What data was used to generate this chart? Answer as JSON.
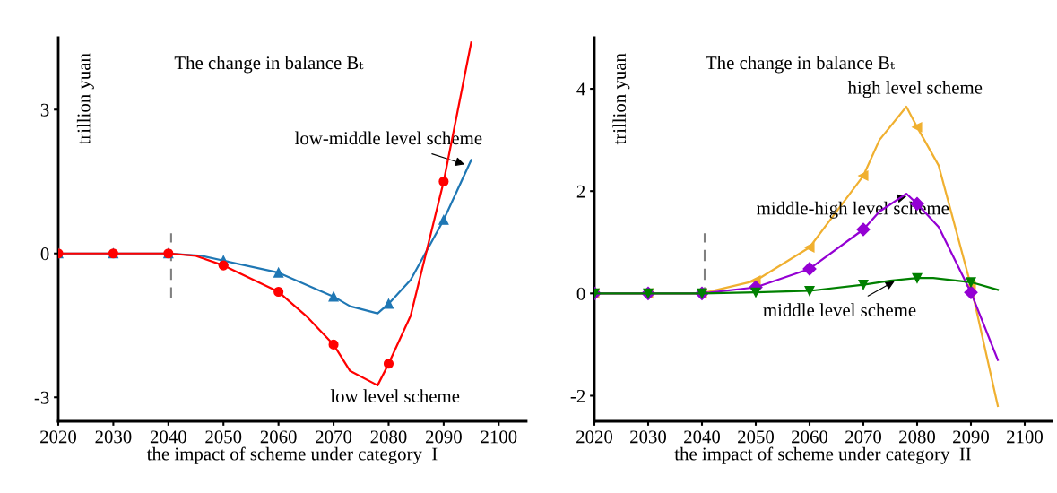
{
  "chart_data": [
    {
      "type": "line",
      "title": "The change in balance Bₜ",
      "xlabel": "the impact of scheme under category  I",
      "ylabel": "trillion yuan",
      "xlim": [
        2020,
        2105
      ],
      "xticks": [
        2020,
        2030,
        2040,
        2050,
        2060,
        2070,
        2080,
        2090,
        2100
      ],
      "ylim": [
        -3.5,
        4.5
      ],
      "yticks": [
        -3,
        0,
        3
      ],
      "grid": false,
      "legend": false,
      "ref_lines": [
        {
          "axis": "x",
          "value": 2040.5,
          "color": "#808080",
          "line_style": "dashed"
        }
      ],
      "series": [
        {
          "color": "#ff0000",
          "marker": "circle",
          "x": [
            2020,
            2030,
            2040,
            2045,
            2050,
            2060,
            2065,
            2070,
            2073,
            2078,
            2080,
            2084,
            2090,
            2095
          ],
          "values": [
            0,
            0,
            0,
            -0.05,
            -0.25,
            -0.8,
            -1.3,
            -1.9,
            -2.45,
            -2.75,
            -2.3,
            -1.3,
            1.5,
            4.4
          ]
        },
        {
          "color": "#1f77b4",
          "marker": "triangle",
          "x": [
            2020,
            2030,
            2040,
            2046,
            2050,
            2060,
            2070,
            2073,
            2078,
            2080,
            2084,
            2090,
            2095
          ],
          "values": [
            0,
            0,
            0,
            -0.05,
            -0.15,
            -0.4,
            -0.9,
            -1.1,
            -1.25,
            -1.05,
            -0.55,
            0.7,
            1.95
          ]
        }
      ],
      "annotations": [
        {
          "text": "low-middle level scheme",
          "x": 2094,
          "y": 1.85
        },
        {
          "text": "low level scheme",
          "x": 2078,
          "y": -2.75
        }
      ]
    },
    {
      "type": "line",
      "title": "The change in balance Bₜ",
      "xlabel": "the impact of scheme under category  II",
      "ylabel": "trillion yuan",
      "xlim": [
        2020,
        2105
      ],
      "xticks": [
        2020,
        2030,
        2040,
        2050,
        2060,
        2070,
        2080,
        2090,
        2100
      ],
      "ylim": [
        -2.5,
        5.0
      ],
      "yticks": [
        -2,
        0,
        2,
        4
      ],
      "grid": false,
      "legend": false,
      "ref_lines": [
        {
          "axis": "x",
          "value": 2040.5,
          "color": "#808080",
          "line_style": "dashed"
        }
      ],
      "series": [
        {
          "color": "#008000",
          "marker": "triangle_down",
          "x": [
            2020,
            2030,
            2040,
            2050,
            2060,
            2070,
            2075,
            2080,
            2083,
            2090,
            2095
          ],
          "values": [
            0,
            0,
            0,
            0.02,
            0.05,
            0.17,
            0.25,
            0.3,
            0.3,
            0.22,
            0.07
          ]
        },
        {
          "color": "#9400d3",
          "marker": "diamond",
          "x": [
            2020,
            2030,
            2040,
            2050,
            2060,
            2070,
            2073,
            2078,
            2080,
            2084,
            2090,
            2095
          ],
          "values": [
            0,
            0,
            0,
            0.12,
            0.48,
            1.25,
            1.6,
            1.95,
            1.75,
            1.3,
            0.02,
            -1.3
          ]
        },
        {
          "color": "#f0b030",
          "marker": "triangle_left",
          "x": [
            2020,
            2030,
            2040,
            2050,
            2060,
            2070,
            2073,
            2078,
            2080,
            2084,
            2090,
            2095
          ],
          "values": [
            0,
            0,
            0,
            0.25,
            0.9,
            2.3,
            3.0,
            3.65,
            3.25,
            2.5,
            0.15,
            -2.2
          ]
        }
      ],
      "annotations": [
        {
          "text": "high level scheme",
          "x": 2078,
          "y": 3.65
        },
        {
          "text": "middle-high level scheme",
          "x": 2078,
          "y": 1.9
        },
        {
          "text": "middle level scheme",
          "x": 2076,
          "y": 0.25
        }
      ]
    }
  ]
}
